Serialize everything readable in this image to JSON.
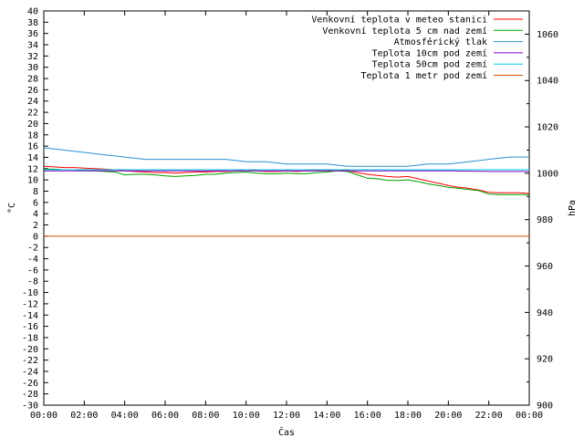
{
  "chart_data": {
    "type": "line",
    "xlabel": "Čas",
    "ylabel": "°C",
    "y2label": "hPa",
    "x_ticks": [
      "00:00",
      "02:00",
      "04:00",
      "06:00",
      "08:00",
      "10:00",
      "12:00",
      "14:00",
      "16:00",
      "18:00",
      "20:00",
      "22:00",
      "00:00"
    ],
    "x_range": [
      0,
      24
    ],
    "ylim": [
      -30,
      40
    ],
    "y_ticks": [
      40,
      38,
      36,
      34,
      32,
      30,
      28,
      26,
      24,
      22,
      20,
      18,
      16,
      14,
      12,
      10,
      8,
      6,
      4,
      2,
      0,
      -2,
      -4,
      -6,
      -8,
      -10,
      -12,
      -14,
      -16,
      -18,
      -20,
      -22,
      -24,
      -26,
      -28,
      -30
    ],
    "y2lim": [
      900,
      1070
    ],
    "y2_ticks": [
      1060,
      1040,
      1020,
      1000,
      980,
      960,
      940,
      920,
      900
    ],
    "grid": false,
    "legend_position": "top-right",
    "series": [
      {
        "name": "Venkovní teplota v meteo stanici",
        "color": "#ff0000",
        "axis": "left",
        "x": [
          0,
          0.5,
          1,
          1.5,
          2,
          2.5,
          3,
          3.5,
          4,
          4.5,
          5,
          5.5,
          6,
          6.5,
          7,
          7.5,
          8,
          8.5,
          9,
          9.5,
          10,
          10.5,
          11,
          11.5,
          12,
          12.5,
          13,
          13.5,
          14,
          14.5,
          15,
          15.5,
          16,
          16.5,
          17,
          17.5,
          18,
          18.5,
          19,
          19.5,
          20,
          20.5,
          21,
          21.5,
          22,
          22.5,
          23,
          23.5,
          24
        ],
        "values": [
          12.4,
          12.3,
          12.2,
          12.2,
          12.1,
          12.0,
          11.9,
          11.8,
          11.6,
          11.5,
          11.4,
          11.3,
          11.3,
          11.2,
          11.3,
          11.4,
          11.4,
          11.5,
          11.5,
          11.6,
          11.8,
          11.6,
          11.5,
          11.5,
          11.6,
          11.5,
          11.6,
          11.7,
          11.7,
          11.8,
          11.7,
          11.3,
          11.0,
          10.8,
          10.6,
          10.5,
          10.6,
          10.2,
          9.8,
          9.4,
          9.0,
          8.7,
          8.5,
          8.2,
          7.8,
          7.7,
          7.7,
          7.7,
          7.6
        ]
      },
      {
        "name": "Venkovní teplota 5 cm nad zemí",
        "color": "#00a000",
        "axis": "left",
        "x": [
          0,
          0.5,
          1,
          1.5,
          2,
          2.5,
          3,
          3.5,
          4,
          4.5,
          5,
          5.5,
          6,
          6.5,
          7,
          7.5,
          8,
          8.5,
          9,
          9.5,
          10,
          10.5,
          11,
          11.5,
          12,
          12.5,
          13,
          13.5,
          14,
          14.5,
          15,
          15.5,
          16,
          16.5,
          17,
          17.5,
          18,
          18.5,
          19,
          19.5,
          20,
          20.5,
          21,
          21.5,
          22,
          22.5,
          23,
          23.5,
          24
        ],
        "values": [
          11.9,
          11.9,
          11.8,
          11.8,
          11.7,
          11.6,
          11.5,
          11.4,
          10.9,
          11.0,
          11.0,
          10.9,
          10.7,
          10.6,
          10.7,
          10.8,
          11.0,
          11.0,
          11.2,
          11.3,
          11.4,
          11.2,
          11.1,
          11.1,
          11.2,
          11.1,
          11.1,
          11.3,
          11.4,
          11.6,
          11.5,
          10.9,
          10.3,
          10.2,
          9.9,
          9.9,
          10.0,
          9.7,
          9.3,
          9.0,
          8.7,
          8.5,
          8.3,
          8.1,
          7.5,
          7.4,
          7.4,
          7.4,
          7.4
        ]
      },
      {
        "name": "Atmosférický tlak",
        "color": "#2b8fcf",
        "axis": "right",
        "x": [
          0,
          1,
          2,
          3,
          4,
          5,
          6,
          7,
          8,
          9,
          10,
          11,
          12,
          13,
          14,
          15,
          16,
          17,
          18,
          19,
          20,
          21,
          22,
          23,
          24
        ],
        "values": [
          1011,
          1010,
          1009,
          1008,
          1007,
          1006,
          1006,
          1006,
          1006,
          1006,
          1005,
          1005,
          1004,
          1004,
          1004,
          1003,
          1003,
          1003,
          1003,
          1004,
          1004,
          1005,
          1006,
          1007,
          1007
        ]
      },
      {
        "name": "Teplota 10cm pod zemí",
        "color": "#8000c0",
        "axis": "left",
        "x": [
          0,
          2,
          4,
          6,
          8,
          10,
          12,
          14,
          16,
          18,
          20,
          22,
          24
        ],
        "values": [
          11.6,
          11.6,
          11.6,
          11.6,
          11.6,
          11.6,
          11.6,
          11.6,
          11.6,
          11.6,
          11.6,
          11.5,
          11.5
        ]
      },
      {
        "name": "Teplota 50cm pod zemí",
        "color": "#00c8e8",
        "axis": "left",
        "x": [
          0,
          2,
          4,
          6,
          8,
          10,
          12,
          14,
          16,
          18,
          20,
          22,
          24
        ],
        "values": [
          11.8,
          11.8,
          11.8,
          11.8,
          11.8,
          11.8,
          11.8,
          11.8,
          11.8,
          11.8,
          11.8,
          11.8,
          11.8
        ]
      },
      {
        "name": "Teplota 1 metr pod zemí",
        "color": "#d05000",
        "axis": "left",
        "x": [
          0,
          24
        ],
        "values": [
          0,
          0
        ]
      }
    ]
  }
}
